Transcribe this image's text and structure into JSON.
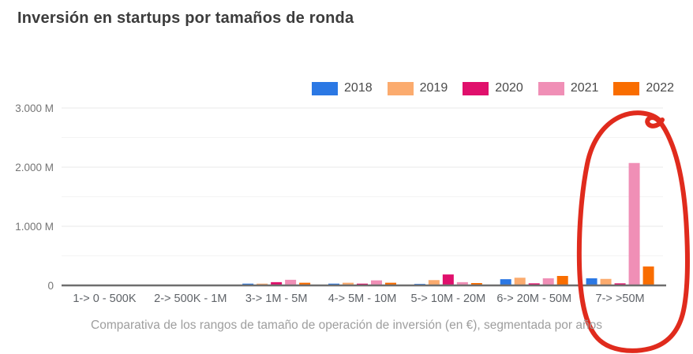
{
  "header": {
    "title": "Inversión en startups por tamaños de ronda"
  },
  "caption": "Comparativa de los rangos de tamaño de operación de inversión (en €), segmentada por años",
  "chart_data": {
    "type": "bar",
    "title": "Inversión en startups por tamaños de ronda",
    "categories": [
      "1-> 0 - 500K",
      "2-> 500K - 1M",
      "3-> 1M - 5M",
      "4-> 5M - 10M",
      "5-> 10M - 20M",
      "6-> 20M - 50M",
      "7-> >50M"
    ],
    "series": [
      {
        "name": "2018",
        "color": "#2b78e4",
        "values": [
          8,
          10,
          30,
          30,
          25,
          105,
          120
        ]
      },
      {
        "name": "2019",
        "color": "#fbab6e",
        "values": [
          8,
          10,
          30,
          45,
          90,
          130,
          110
        ]
      },
      {
        "name": "2020",
        "color": "#e0106c",
        "values": [
          10,
          12,
          55,
          30,
          185,
          35,
          35
        ]
      },
      {
        "name": "2021",
        "color": "#f08fb6",
        "values": [
          12,
          14,
          95,
          85,
          55,
          120,
          2070
        ]
      },
      {
        "name": "2022",
        "color": "#f96d00",
        "values": [
          10,
          12,
          45,
          45,
          40,
          160,
          320
        ]
      }
    ],
    "xlabel": "",
    "ylabel": "",
    "ylim": [
      0,
      3000
    ],
    "y_ticks": [
      {
        "value": 0,
        "label": "0"
      },
      {
        "value": 1000,
        "label": "1.000 M"
      },
      {
        "value": 2000,
        "label": "2.000 M"
      },
      {
        "value": 3000,
        "label": "3.000 M"
      }
    ],
    "y_minor_ticks": [
      500,
      1500,
      2500
    ],
    "grid": true,
    "legend_position": "top-right",
    "legend_entries": [
      "2018",
      "2019",
      "2020",
      "2021",
      "2022"
    ],
    "annotation": {
      "type": "hand-drawn-circle",
      "target": "7-> >50M",
      "color": "#e02b1d"
    }
  }
}
